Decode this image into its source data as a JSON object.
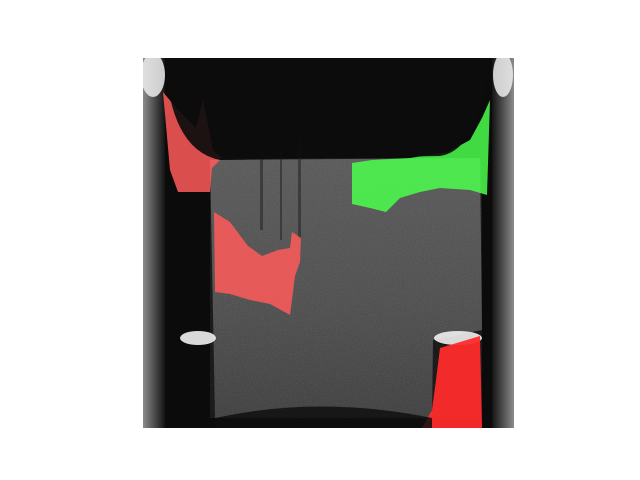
{
  "figure": {
    "background_color": "#ffffff",
    "image_kind": "grayscale scan with colored segmentation overlay",
    "scan_colors": {
      "outer_dark": "#0b0b0b",
      "inner_gray": "#4a4a4a",
      "bright_edge": "#f2f2f2"
    },
    "overlay_colors": {
      "red_mask": "#ff2b2b",
      "red_mask_translucent": "#ff5a5a",
      "green_mask": "#4cff4c"
    },
    "overlay_regions": [
      {
        "name": "upper-left-red-region",
        "color": "red"
      },
      {
        "name": "center-left-red-region",
        "color": "red"
      },
      {
        "name": "upper-right-green-region",
        "color": "green"
      },
      {
        "name": "lower-right-red-region",
        "color": "red"
      }
    ],
    "axes_visible": false,
    "text_visible": false
  }
}
